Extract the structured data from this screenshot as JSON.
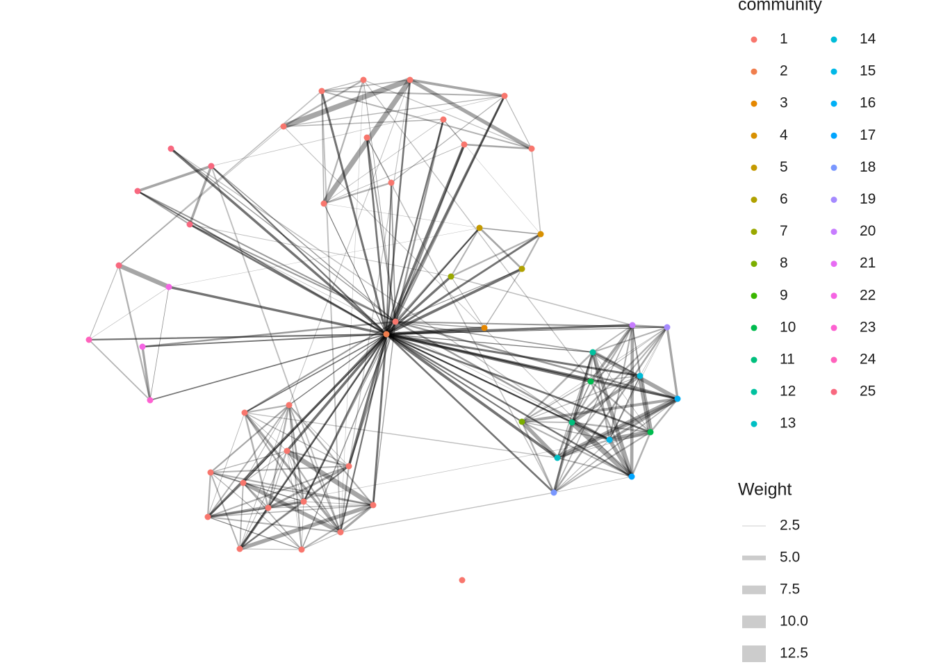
{
  "legend": {
    "community": {
      "title": "community",
      "items": [
        {
          "label": "1",
          "color": "#F8766D"
        },
        {
          "label": "2",
          "color": "#F07E4D"
        },
        {
          "label": "3",
          "color": "#E58700"
        },
        {
          "label": "4",
          "color": "#D89000"
        },
        {
          "label": "5",
          "color": "#C49A00"
        },
        {
          "label": "6",
          "color": "#B0A100"
        },
        {
          "label": "7",
          "color": "#99A800"
        },
        {
          "label": "8",
          "color": "#7CAE00"
        },
        {
          "label": "9",
          "color": "#39B600"
        },
        {
          "label": "10",
          "color": "#00BB4E"
        },
        {
          "label": "11",
          "color": "#00BF7D"
        },
        {
          "label": "12",
          "color": "#00C19F"
        },
        {
          "label": "13",
          "color": "#00BFC4"
        },
        {
          "label": "14",
          "color": "#00BCD8"
        },
        {
          "label": "15",
          "color": "#00B8E7"
        },
        {
          "label": "16",
          "color": "#00B0F6"
        },
        {
          "label": "17",
          "color": "#00A5FF"
        },
        {
          "label": "18",
          "color": "#7997FF"
        },
        {
          "label": "19",
          "color": "#A58AFF"
        },
        {
          "label": "20",
          "color": "#C77CFF"
        },
        {
          "label": "21",
          "color": "#E76BF3"
        },
        {
          "label": "22",
          "color": "#F564E3"
        },
        {
          "label": "23",
          "color": "#FD61D1"
        },
        {
          "label": "24",
          "color": "#FF62BC"
        },
        {
          "label": "25",
          "color": "#F8687F"
        }
      ]
    },
    "weight": {
      "title": "Weight",
      "items": [
        {
          "value": 2.5,
          "label": "2.5"
        },
        {
          "value": 5,
          "label": "5.0"
        },
        {
          "value": 7.5,
          "label": "7.5"
        },
        {
          "value": 10,
          "label": "10.0"
        },
        {
          "value": 12.5,
          "label": "12.5"
        }
      ]
    }
  }
}
